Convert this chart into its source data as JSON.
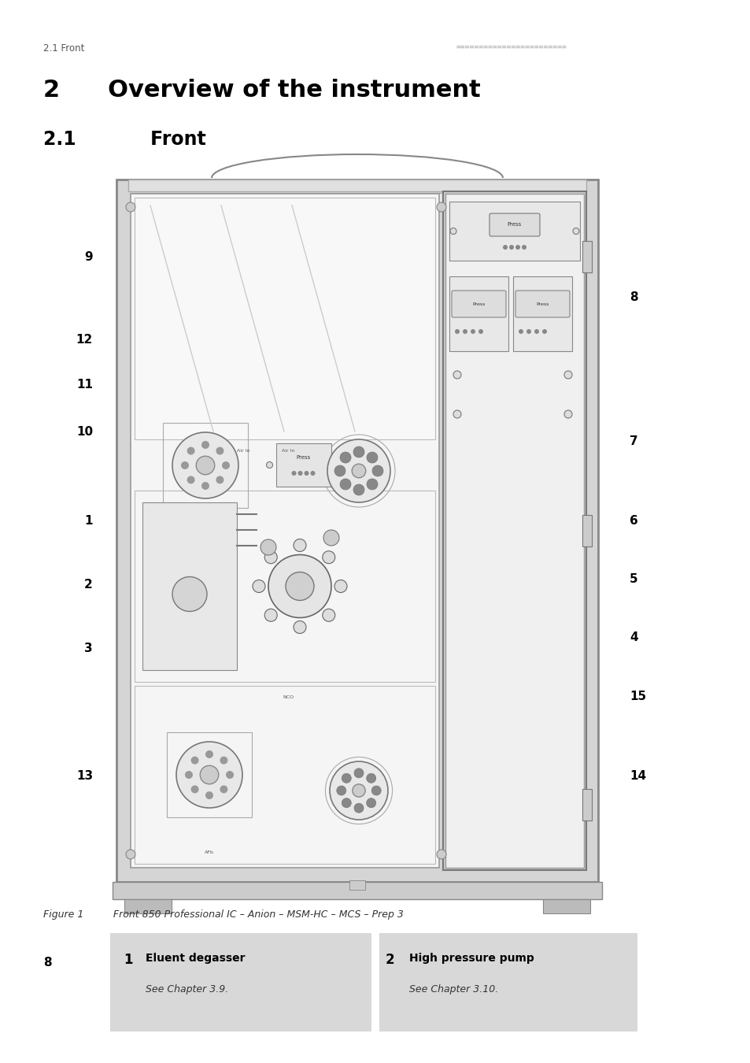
{
  "page_header_left": "2.1 Front",
  "page_header_dots": "========================",
  "chapter_title": "2  Overview of the instrument",
  "section_title": "2.1    Front",
  "figure_caption": "Figure 1   Front 850 Professional IC – Anion – MSM-HC – MCS – Prep 3",
  "table_row1_num1": "1",
  "table_row1_label1": "Eluent degasser",
  "table_row1_sub1": "See Chapter 3.9.",
  "table_row1_num2": "2",
  "table_row1_label2": "High pressure pump",
  "table_row1_sub2": "See Chapter 3.10.",
  "page_number": "8",
  "bg_color": "#ffffff",
  "text_color": "#000000",
  "table_bg": "#d8d8d8",
  "header_dot_color": "#bbbbbb",
  "label_positions_left": {
    "9": 0.758,
    "12": 0.68,
    "11": 0.638,
    "10": 0.594,
    "1": 0.51,
    "2": 0.45,
    "3": 0.39,
    "13": 0.27
  },
  "label_positions_right": {
    "8": 0.72,
    "7": 0.585,
    "6": 0.51,
    "5": 0.455,
    "4": 0.4,
    "15": 0.345,
    "14": 0.27
  }
}
